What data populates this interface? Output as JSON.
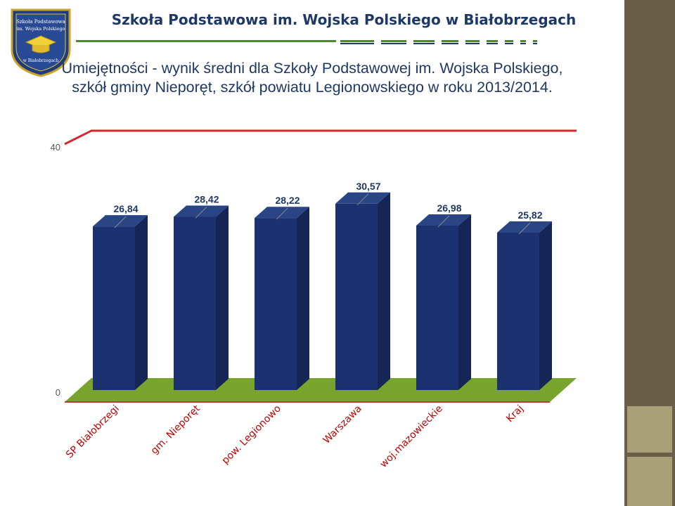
{
  "header": {
    "school_name": "Szkoła Podstawowa im. Wojska Polskiego w Białobrzegach",
    "logo_text": [
      "Szkoła Podstawowa",
      "im. Wojska Polskiego",
      "w Białobrzegach"
    ],
    "title_line1": "Umiejętności -  wynik średni dla Szkoły Podstawowej im. Wojska Polskiego,",
    "title_line2": "szkół gminy Nieporęt, szkół powiatu Legionowskiego w roku 2013/2014."
  },
  "colors": {
    "bar_front": "#1b3170",
    "bar_side": "#142556",
    "bar_top": "#2a4585",
    "floor": "#78a32c",
    "floor_edge": "#c0392b",
    "ceiling": "#d62828",
    "label": "#1f3864",
    "panel": "#6b5e48",
    "panel_square": "#a99f78"
  },
  "chart_data": {
    "type": "bar",
    "categories": [
      "SP Białobrzegi",
      "gm. Nieporęt",
      "pow. Legionowo",
      "Warszawa",
      "woj.mazowieckie",
      "Kraj"
    ],
    "values": [
      26.84,
      28.42,
      28.22,
      30.57,
      26.98,
      25.82
    ],
    "data_labels": [
      "26,84",
      "28,42",
      "28,22",
      "30,57",
      "26,98",
      "25,82"
    ],
    "ylim": [
      0,
      40
    ],
    "y_tick_labels": [
      "0",
      "40"
    ],
    "grid": false,
    "legend": "none",
    "style": "3d"
  }
}
